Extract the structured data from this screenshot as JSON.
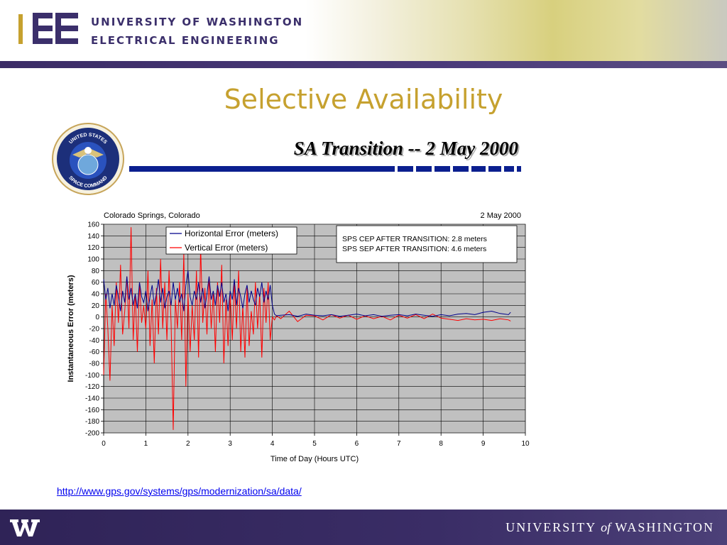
{
  "header": {
    "dept_line1": "UNIVERSITY OF WASHINGTON",
    "dept_line2": "ELECTRICAL ENGINEERING",
    "logo_icon": "ee-logo-icon"
  },
  "slide_title": "Selective Availability",
  "figure": {
    "seal_icon": "us-space-command-seal-icon",
    "seal_text_top": "UNITED STATES",
    "seal_text_bottom": "SPACE COMMAND",
    "title": "SA Transition -- 2 May 2000"
  },
  "chart_data": {
    "type": "line",
    "title": "",
    "location_label": "Colorado Springs, Colorado",
    "date_label": "2 May 2000",
    "xlabel": "Time of Day (Hours UTC)",
    "ylabel": "Instantaneous Error (meters)",
    "xlim": [
      0,
      10
    ],
    "ylim": [
      -200,
      160
    ],
    "x_ticks": [
      "0",
      "1",
      "2",
      "3",
      "4",
      "5",
      "6",
      "7",
      "8",
      "9",
      "10"
    ],
    "y_ticks": [
      "160",
      "140",
      "120",
      "100",
      "80",
      "60",
      "40",
      "20",
      "0",
      "-20",
      "-40",
      "-60",
      "-80",
      "-100",
      "-120",
      "-140",
      "-160",
      "-180",
      "-200"
    ],
    "grid": true,
    "plot_background": "#c0c0c0",
    "legend_position": "top-center",
    "annotation_lines": [
      "SPS CEP AFTER TRANSITION:  2.8 meters",
      "SPS SEP AFTER TRANSITION:  4.6 meters"
    ],
    "series": [
      {
        "name": "Horizontal Error (meters)",
        "color": "#00008b",
        "x": [
          0.0,
          0.05,
          0.1,
          0.15,
          0.2,
          0.25,
          0.3,
          0.35,
          0.4,
          0.45,
          0.5,
          0.55,
          0.6,
          0.65,
          0.7,
          0.75,
          0.8,
          0.85,
          0.9,
          0.95,
          1.0,
          1.05,
          1.1,
          1.15,
          1.2,
          1.25,
          1.3,
          1.35,
          1.4,
          1.45,
          1.5,
          1.55,
          1.6,
          1.65,
          1.7,
          1.75,
          1.8,
          1.85,
          1.9,
          1.95,
          2.0,
          2.05,
          2.1,
          2.15,
          2.2,
          2.25,
          2.3,
          2.35,
          2.4,
          2.45,
          2.5,
          2.55,
          2.6,
          2.65,
          2.7,
          2.75,
          2.8,
          2.85,
          2.9,
          2.95,
          3.0,
          3.05,
          3.1,
          3.15,
          3.2,
          3.25,
          3.3,
          3.35,
          3.4,
          3.45,
          3.5,
          3.55,
          3.6,
          3.65,
          3.7,
          3.75,
          3.8,
          3.85,
          3.9,
          3.95,
          4.0,
          4.05,
          4.1,
          4.2,
          4.4,
          4.6,
          4.8,
          5.0,
          5.2,
          5.4,
          5.6,
          5.8,
          6.0,
          6.2,
          6.4,
          6.6,
          6.8,
          7.0,
          7.2,
          7.4,
          7.6,
          7.8,
          8.0,
          8.2,
          8.4,
          8.6,
          8.8,
          9.0,
          9.2,
          9.4,
          9.6,
          9.65
        ],
        "y": [
          65,
          30,
          50,
          15,
          40,
          20,
          55,
          35,
          10,
          45,
          25,
          70,
          30,
          50,
          20,
          40,
          15,
          60,
          35,
          25,
          45,
          10,
          35,
          55,
          20,
          40,
          65,
          25,
          50,
          15,
          35,
          45,
          20,
          60,
          30,
          50,
          25,
          40,
          10,
          55,
          80,
          35,
          20,
          45,
          30,
          60,
          25,
          50,
          15,
          40,
          70,
          30,
          45,
          20,
          55,
          35,
          60,
          25,
          40,
          10,
          45,
          30,
          65,
          20,
          50,
          35,
          15,
          40,
          55,
          25,
          45,
          30,
          20,
          50,
          35,
          60,
          25,
          45,
          30,
          55,
          20,
          5,
          2,
          3,
          4,
          1,
          5,
          3,
          2,
          4,
          1,
          3,
          5,
          2,
          4,
          1,
          3,
          4,
          2,
          5,
          3,
          1,
          4,
          2,
          5,
          6,
          4,
          8,
          10,
          6,
          4,
          8
        ]
      },
      {
        "name": "Vertical Error (meters)",
        "color": "#ff0000",
        "x": [
          0.0,
          0.05,
          0.1,
          0.15,
          0.2,
          0.25,
          0.3,
          0.35,
          0.4,
          0.45,
          0.5,
          0.55,
          0.6,
          0.65,
          0.7,
          0.75,
          0.8,
          0.85,
          0.9,
          0.95,
          1.0,
          1.05,
          1.1,
          1.15,
          1.2,
          1.25,
          1.3,
          1.35,
          1.4,
          1.45,
          1.5,
          1.55,
          1.6,
          1.65,
          1.7,
          1.75,
          1.8,
          1.85,
          1.9,
          1.95,
          2.0,
          2.05,
          2.1,
          2.15,
          2.2,
          2.25,
          2.3,
          2.35,
          2.4,
          2.45,
          2.5,
          2.55,
          2.6,
          2.65,
          2.7,
          2.75,
          2.8,
          2.85,
          2.9,
          2.95,
          3.0,
          3.05,
          3.1,
          3.15,
          3.2,
          3.25,
          3.3,
          3.35,
          3.4,
          3.45,
          3.5,
          3.55,
          3.6,
          3.65,
          3.7,
          3.75,
          3.8,
          3.85,
          3.9,
          3.95,
          4.0,
          4.05,
          4.1,
          4.2,
          4.4,
          4.6,
          4.8,
          5.0,
          5.2,
          5.4,
          5.6,
          5.8,
          6.0,
          6.2,
          6.4,
          6.6,
          6.8,
          7.0,
          7.2,
          7.4,
          7.6,
          7.8,
          8.0,
          8.2,
          8.4,
          8.6,
          8.8,
          9.0,
          9.2,
          9.4,
          9.6,
          9.65
        ],
        "y": [
          -100,
          40,
          -20,
          -110,
          20,
          -50,
          60,
          -10,
          90,
          -30,
          10,
          70,
          -20,
          155,
          -40,
          40,
          -60,
          60,
          -10,
          20,
          -20,
          80,
          -50,
          30,
          -80,
          50,
          -30,
          100,
          -20,
          60,
          -40,
          80,
          -10,
          -195,
          30,
          -20,
          60,
          -40,
          110,
          -120,
          40,
          -60,
          20,
          -40,
          80,
          -70,
          120,
          -10,
          50,
          -30,
          70,
          -20,
          40,
          -60,
          60,
          -10,
          90,
          -80,
          30,
          -50,
          40,
          -40,
          60,
          -20,
          80,
          -60,
          20,
          -70,
          50,
          -50,
          10,
          -30,
          60,
          -20,
          40,
          -70,
          50,
          -10,
          60,
          -40,
          0,
          -5,
          2,
          -3,
          10,
          -8,
          3,
          2,
          -5,
          4,
          -2,
          3,
          -4,
          2,
          -3,
          1,
          -5,
          3,
          -2,
          4,
          -3,
          5,
          -2,
          -4,
          -6,
          -3,
          -5,
          -4,
          -6,
          -3,
          -5,
          -7
        ]
      }
    ]
  },
  "source_url": "http://www.gps.gov/systems/gps/modernization/sa/data/",
  "footer": {
    "w_logo_icon": "uw-w-logo-icon",
    "uw_name_pre": "UNIVERSITY",
    "uw_name_of": "of",
    "uw_name_post": "WASHINGTON"
  },
  "colors": {
    "title_gold": "#c6a12f",
    "uw_purple": "#3b2c66",
    "rule_blue": "#0b1f8f"
  }
}
